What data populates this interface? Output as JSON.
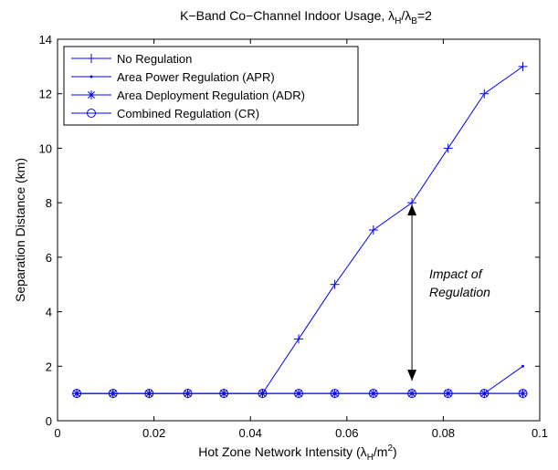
{
  "chart_data": {
    "type": "line",
    "title": "K−Band Co−Channel Indoor Usage, λ",
    "title_parts": {
      "prefix": "K−Band Co−Channel Indoor Usage, λ",
      "sub1": "H",
      "mid": "/λ",
      "sub2": "B",
      "suffix": "=2"
    },
    "xlabel_parts": {
      "prefix": "Hot Zone Network Intensity (λ",
      "sub": "H",
      "mid": "/m",
      "sup": "2",
      "suffix": ")"
    },
    "ylabel": "Separation Distance (km)",
    "xlim": [
      0,
      0.1
    ],
    "ylim": [
      0,
      14
    ],
    "xticks": [
      0,
      0.02,
      0.04,
      0.06,
      0.08,
      0.1
    ],
    "xtick_labels": [
      "0",
      "0.02",
      "0.04",
      "0.06",
      "0.08",
      "0.1"
    ],
    "yticks": [
      0,
      2,
      4,
      6,
      8,
      10,
      12,
      14
    ],
    "ytick_labels": [
      "0",
      "2",
      "4",
      "6",
      "8",
      "10",
      "12",
      "14"
    ],
    "grid": false,
    "legend_position": "top-left",
    "color": "#0000ff",
    "x": [
      0.004,
      0.0115,
      0.019,
      0.027,
      0.0345,
      0.0425,
      0.05,
      0.0575,
      0.0655,
      0.0735,
      0.081,
      0.0885,
      0.0965
    ],
    "series": [
      {
        "name": "No Regulation",
        "marker": "plus",
        "values": [
          1,
          1,
          1,
          1,
          1,
          1,
          3,
          5,
          7,
          8,
          10,
          12,
          13
        ]
      },
      {
        "name": "Area Power Regulation (APR)",
        "marker": "dot",
        "values": [
          1,
          1,
          1,
          1,
          1,
          1,
          1,
          1,
          1,
          1,
          1,
          1,
          2
        ]
      },
      {
        "name": "Area Deployment Regulation (ADR)",
        "marker": "star",
        "values": [
          1,
          1,
          1,
          1,
          1,
          1,
          1,
          1,
          1,
          1,
          1,
          1,
          1
        ]
      },
      {
        "name": "Combined Regulation (CR)",
        "marker": "circle",
        "values": [
          1,
          1,
          1,
          1,
          1,
          1,
          1,
          1,
          1,
          1,
          1,
          1,
          1
        ]
      }
    ],
    "annotation": {
      "lines": [
        "Impact of",
        "Regulation"
      ],
      "arrow_x": 0.0735,
      "arrow_from": 1.0,
      "arrow_to": 8.0
    }
  }
}
